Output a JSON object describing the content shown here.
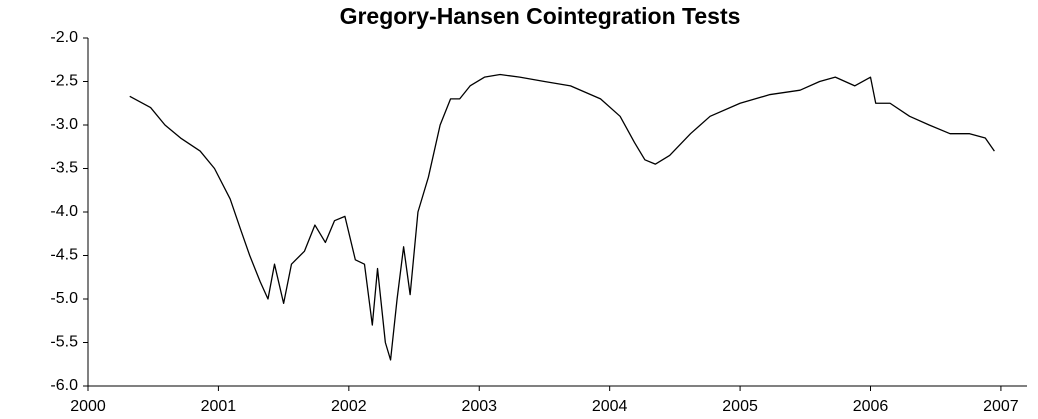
{
  "chart_data": {
    "type": "line",
    "title": "Gregory-Hansen Cointegration Tests",
    "x": [
      2000.32,
      2000.48,
      2000.59,
      2000.71,
      2000.86,
      2000.97,
      2001.09,
      2001.17,
      2001.24,
      2001.32,
      2001.38,
      2001.43,
      2001.5,
      2001.56,
      2001.66,
      2001.74,
      2001.82,
      2001.89,
      2001.97,
      2002.05,
      2002.12,
      2002.18,
      2002.22,
      2002.28,
      2002.32,
      2002.37,
      2002.42,
      2002.47,
      2002.53,
      2002.61,
      2002.7,
      2002.78,
      2002.85,
      2002.93,
      2003.04,
      2003.16,
      2003.31,
      2003.5,
      2003.7,
      2003.93,
      2004.08,
      2004.19,
      2004.27,
      2004.35,
      2004.46,
      2004.62,
      2004.77,
      2005.0,
      2005.23,
      2005.46,
      2005.61,
      2005.73,
      2005.88,
      2006.0,
      2006.04,
      2006.15,
      2006.3,
      2006.45,
      2006.61,
      2006.76,
      2006.88,
      2006.95
    ],
    "series": [
      {
        "color": "#000000",
        "values": [
          -2.67,
          -2.8,
          -3.0,
          -3.15,
          -3.3,
          -3.5,
          -3.85,
          -4.2,
          -4.5,
          -4.8,
          -5.0,
          -4.6,
          -5.05,
          -4.6,
          -4.45,
          -4.15,
          -4.35,
          -4.1,
          -4.05,
          -4.55,
          -4.6,
          -5.3,
          -4.65,
          -5.5,
          -5.7,
          -5.0,
          -4.4,
          -4.95,
          -4.0,
          -3.6,
          -3.0,
          -2.7,
          -2.7,
          -2.55,
          -2.45,
          -2.42,
          -2.45,
          -2.5,
          -2.55,
          -2.7,
          -2.9,
          -3.2,
          -3.4,
          -3.45,
          -3.35,
          -3.1,
          -2.9,
          -2.75,
          -2.65,
          -2.6,
          -2.5,
          -2.45,
          -2.55,
          -2.45,
          -2.75,
          -2.75,
          -2.9,
          -3.0,
          -3.1,
          -3.1,
          -3.15,
          -3.3
        ]
      }
    ],
    "xlim": [
      2000,
      2007.2
    ],
    "xticks": [
      2000,
      2001,
      2002,
      2003,
      2004,
      2005,
      2006,
      2007
    ],
    "ylim": [
      -6.0,
      -2.0
    ],
    "yticks": [
      {
        "value": -6.0,
        "label": "-6.0"
      },
      {
        "value": -5.5,
        "label": "-5.5"
      },
      {
        "value": -5.0,
        "label": "-5.0"
      },
      {
        "value": -4.5,
        "label": "-4.5"
      },
      {
        "value": -4.0,
        "label": "-4.0"
      },
      {
        "value": -3.5,
        "label": "-3.5"
      },
      {
        "value": -3.0,
        "label": "-3.0"
      },
      {
        "value": -2.5,
        "label": "-2.5"
      },
      {
        "value": -2.0,
        "label": "-2.0"
      }
    ],
    "grid": false
  }
}
